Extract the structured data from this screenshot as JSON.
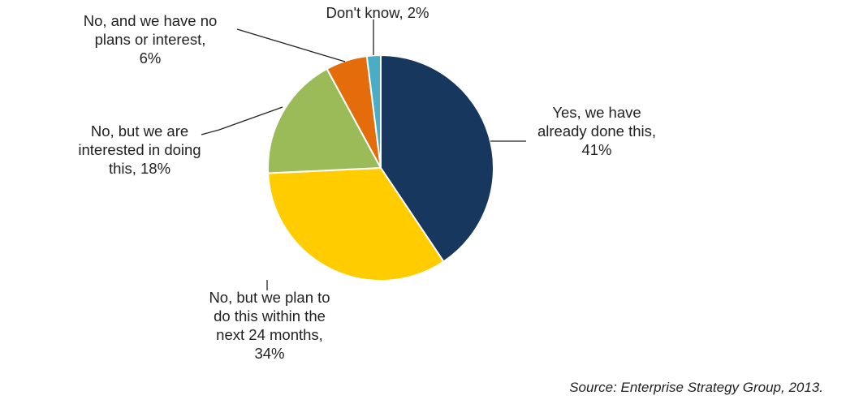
{
  "chart_data": {
    "type": "pie",
    "start_angle_deg": 0,
    "direction": "clockwise",
    "slices": [
      {
        "label_lines": [
          "Yes, we have",
          "already done this,",
          "41%"
        ],
        "value": 41,
        "color": "#17375e"
      },
      {
        "label_lines": [
          "No, but we plan to",
          "do this within the",
          "next 24 months,",
          "34%"
        ],
        "value": 34,
        "color": "#ffcc00"
      },
      {
        "label_lines": [
          "No, but we are",
          "interested in doing",
          "this, 18%"
        ],
        "value": 18,
        "color": "#9bbb59"
      },
      {
        "label_lines": [
          "No, and we have no",
          "plans or interest,",
          "6%"
        ],
        "value": 6,
        "color": "#e46c0a"
      },
      {
        "label_lines": [
          "Don't know, 2%"
        ],
        "value": 2,
        "color": "#4bacc6"
      }
    ]
  },
  "source": "Source: Enterprise Strategy Group, 2013."
}
